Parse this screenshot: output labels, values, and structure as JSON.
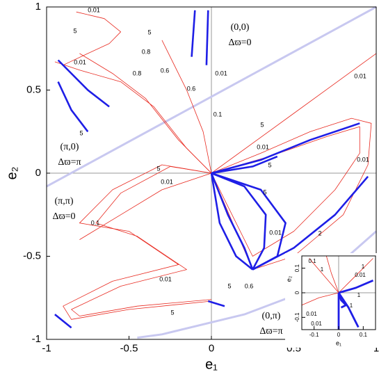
{
  "chart_data": [
    {
      "type": "line",
      "xlabel": "e₁",
      "ylabel": "e₂",
      "xlim": [
        -1,
        1
      ],
      "ylim": [
        -1,
        1
      ],
      "xticks": [
        -1,
        -0.5,
        0,
        0.5,
        1
      ],
      "yticks": [
        -1,
        -0.5,
        0,
        0.5,
        1
      ],
      "annotations": [
        "(0,0)",
        "Δϖ=0",
        "(π,0)",
        "Δϖ=π",
        "(π,π)",
        "Δϖ=0",
        "(0,π)",
        "Δϖ=π",
        "0.01",
        "5",
        "5",
        "0.8",
        "0.6",
        "0.01",
        "0.8",
        "0.6",
        "0.01",
        "5",
        "0.1",
        "5",
        "0.01",
        "0.01",
        "0.01",
        "5",
        "5",
        "0.01",
        "5",
        "0.1",
        "0.01",
        "2",
        "0.01",
        "5",
        "0.6",
        "5"
      ],
      "series": [
        {
          "color": "#c8c8f0",
          "x": [
            -1,
            1
          ],
          "values": [
            -0.08,
            1
          ]
        },
        {
          "color": "#c8c8f0",
          "x": [
            -0.45,
            -0.3,
            0.2,
            0.6,
            1
          ],
          "values": [
            -0.99,
            -0.97,
            -0.85,
            -0.7,
            -0.35
          ]
        },
        {
          "color": "#e8281e",
          "x": [
            0,
            0.5,
            1
          ],
          "values": [
            0,
            0.36,
            0.72
          ]
        },
        {
          "color": "#e8281e",
          "x": [
            0,
            0.3,
            0.6,
            0.85,
            0.97,
            0.95,
            0.8,
            0.5,
            0.25,
            0
          ],
          "values": [
            0,
            0.12,
            0.25,
            0.33,
            0.3,
            0.05,
            -0.25,
            -0.5,
            -0.58,
            0
          ]
        },
        {
          "color": "#e8281e",
          "x": [
            0,
            0.35,
            0.7,
            0.9,
            0.9,
            0.75,
            0.5,
            0.25,
            0
          ],
          "values": [
            0,
            0.1,
            0.22,
            0.28,
            0.12,
            -0.1,
            -0.35,
            -0.5,
            0
          ]
        },
        {
          "color": "#e8281e",
          "x": [
            0,
            -0.3,
            -0.6,
            -0.8,
            -0.5,
            -0.2,
            -0.6,
            -0.9,
            -0.85,
            -0.5,
            0
          ],
          "values": [
            0,
            0.05,
            -0.1,
            -0.3,
            -0.35,
            -0.55,
            -0.65,
            -0.8,
            -0.88,
            -0.82,
            -0.77
          ]
        },
        {
          "color": "#e8281e",
          "x": [
            0,
            -0.25,
            -0.55,
            -0.7,
            -0.45,
            -0.15,
            -0.55,
            -0.85,
            -0.8,
            -0.45,
            0
          ],
          "values": [
            0,
            0.04,
            -0.12,
            -0.3,
            -0.38,
            -0.58,
            -0.68,
            -0.82,
            -0.86,
            -0.8,
            -0.76
          ]
        },
        {
          "color": "#e8281e",
          "x": [
            -0.82,
            -0.65,
            -0.55,
            -0.62,
            -0.75,
            -0.9
          ],
          "values": [
            0.97,
            0.93,
            0.85,
            0.78,
            0.72,
            0.65
          ]
        },
        {
          "color": "#e8281e",
          "x": [
            0,
            -0.15,
            -0.35,
            -0.55,
            -0.8,
            -0.95
          ],
          "values": [
            0,
            0.15,
            0.4,
            0.55,
            0.62,
            0.67
          ]
        },
        {
          "color": "#e8281e",
          "x": [
            0,
            -0.2,
            -0.4,
            -0.6,
            -0.8
          ],
          "values": [
            0,
            0.2,
            0.45,
            0.6,
            0.72
          ]
        },
        {
          "color": "#e8281e",
          "x": [
            0,
            -0.05,
            -0.15,
            -0.3
          ],
          "values": [
            0,
            0.25,
            0.5,
            0.8
          ]
        },
        {
          "color": "#e8281e",
          "x": [
            0,
            -0.3,
            -0.55,
            -0.8
          ],
          "values": [
            0,
            -0.1,
            -0.25,
            -0.4
          ]
        },
        {
          "color": "#1e1ee6",
          "x": [
            -0.93,
            -0.85,
            -0.75
          ],
          "values": [
            0.55,
            0.38,
            0.25
          ]
        },
        {
          "color": "#1e1ee6",
          "x": [
            -0.93,
            -0.75,
            -0.62
          ],
          "values": [
            0.68,
            0.5,
            0.4
          ]
        },
        {
          "color": "#1e1ee6",
          "x": [
            -0.02,
            -0.03
          ],
          "values": [
            0.98,
            0.65
          ]
        },
        {
          "color": "#1e1ee6",
          "x": [
            -0.1,
            -0.12
          ],
          "values": [
            0.98,
            0.7
          ]
        },
        {
          "color": "#1e1ee6",
          "x": [
            0,
            0.3,
            0.6,
            0.9
          ],
          "values": [
            0,
            0.08,
            0.2,
            0.3
          ]
        },
        {
          "color": "#1e1ee6",
          "x": [
            0,
            0.25,
            0.4
          ],
          "values": [
            0,
            0.04,
            0.1
          ]
        },
        {
          "color": "#1e1ee6",
          "x": [
            0,
            0.05,
            0.15,
            0.25
          ],
          "values": [
            0,
            -0.3,
            -0.5,
            -0.58
          ]
        },
        {
          "color": "#1e1ee6",
          "x": [
            0,
            0.1,
            0.2,
            0.25
          ],
          "values": [
            0,
            -0.25,
            -0.45,
            -0.58
          ]
        },
        {
          "color": "#1e1ee6",
          "x": [
            0,
            0.3,
            0.45,
            0.4,
            0.25
          ],
          "values": [
            0,
            -0.1,
            -0.3,
            -0.5,
            -0.58
          ]
        },
        {
          "color": "#1e1ee6",
          "x": [
            0,
            0.2,
            0.33,
            0.32,
            0.25
          ],
          "values": [
            0,
            -0.08,
            -0.25,
            -0.45,
            -0.58
          ]
        },
        {
          "color": "#1e1ee6",
          "x": [
            0.25,
            0.5,
            0.75,
            0.95
          ],
          "values": [
            -0.58,
            -0.45,
            -0.25,
            -0.02
          ]
        },
        {
          "color": "#1e1ee6",
          "x": [
            -0.02,
            0.08
          ],
          "values": [
            -0.77,
            -0.8
          ]
        },
        {
          "color": "#1e1ee6",
          "x": [
            -0.95,
            -0.85
          ],
          "values": [
            -0.85,
            -0.93
          ]
        }
      ]
    },
    {
      "type": "line",
      "xlabel": "e₁",
      "ylabel": "e₂",
      "xlim": [
        -0.15,
        0.15
      ],
      "ylim": [
        -0.15,
        0.15
      ],
      "xticks": [
        -0.1,
        0,
        0.1
      ],
      "yticks": [
        -0.1,
        0,
        0.1
      ],
      "annotations": [
        "0.1",
        "1",
        "1",
        "0.01",
        "0.01",
        "1",
        "0.01",
        "1"
      ],
      "series": [
        {
          "color": "#e8281e",
          "x": [
            0,
            -0.06,
            -0.12
          ],
          "values": [
            0,
            0.07,
            0.14
          ]
        },
        {
          "color": "#e8281e",
          "x": [
            0,
            -0.03,
            -0.05
          ],
          "values": [
            0,
            0.08,
            0.15
          ]
        },
        {
          "color": "#e8281e",
          "x": [
            0,
            0.07,
            0.14
          ],
          "values": [
            0,
            0.07,
            0.14
          ]
        },
        {
          "color": "#e8281e",
          "x": [
            0,
            -0.08,
            -0.15
          ],
          "values": [
            0,
            -0.02,
            -0.05
          ]
        },
        {
          "color": "#1e1ee6",
          "x": [
            0,
            0.07,
            0.14
          ],
          "values": [
            0,
            0.02,
            0.05
          ]
        },
        {
          "color": "#1e1ee6",
          "x": [
            0,
            0.01,
            0.03,
            0.01
          ],
          "values": [
            0,
            -0.03,
            -0.05,
            -0.06
          ]
        },
        {
          "color": "#1e1ee6",
          "x": [
            0,
            0,
            0
          ],
          "values": [
            0,
            -0.1,
            -0.15
          ]
        },
        {
          "color": "#1e1ee6",
          "x": [
            0,
            0.04,
            0.08
          ],
          "values": [
            0,
            -0.06,
            -0.14
          ]
        }
      ]
    }
  ]
}
